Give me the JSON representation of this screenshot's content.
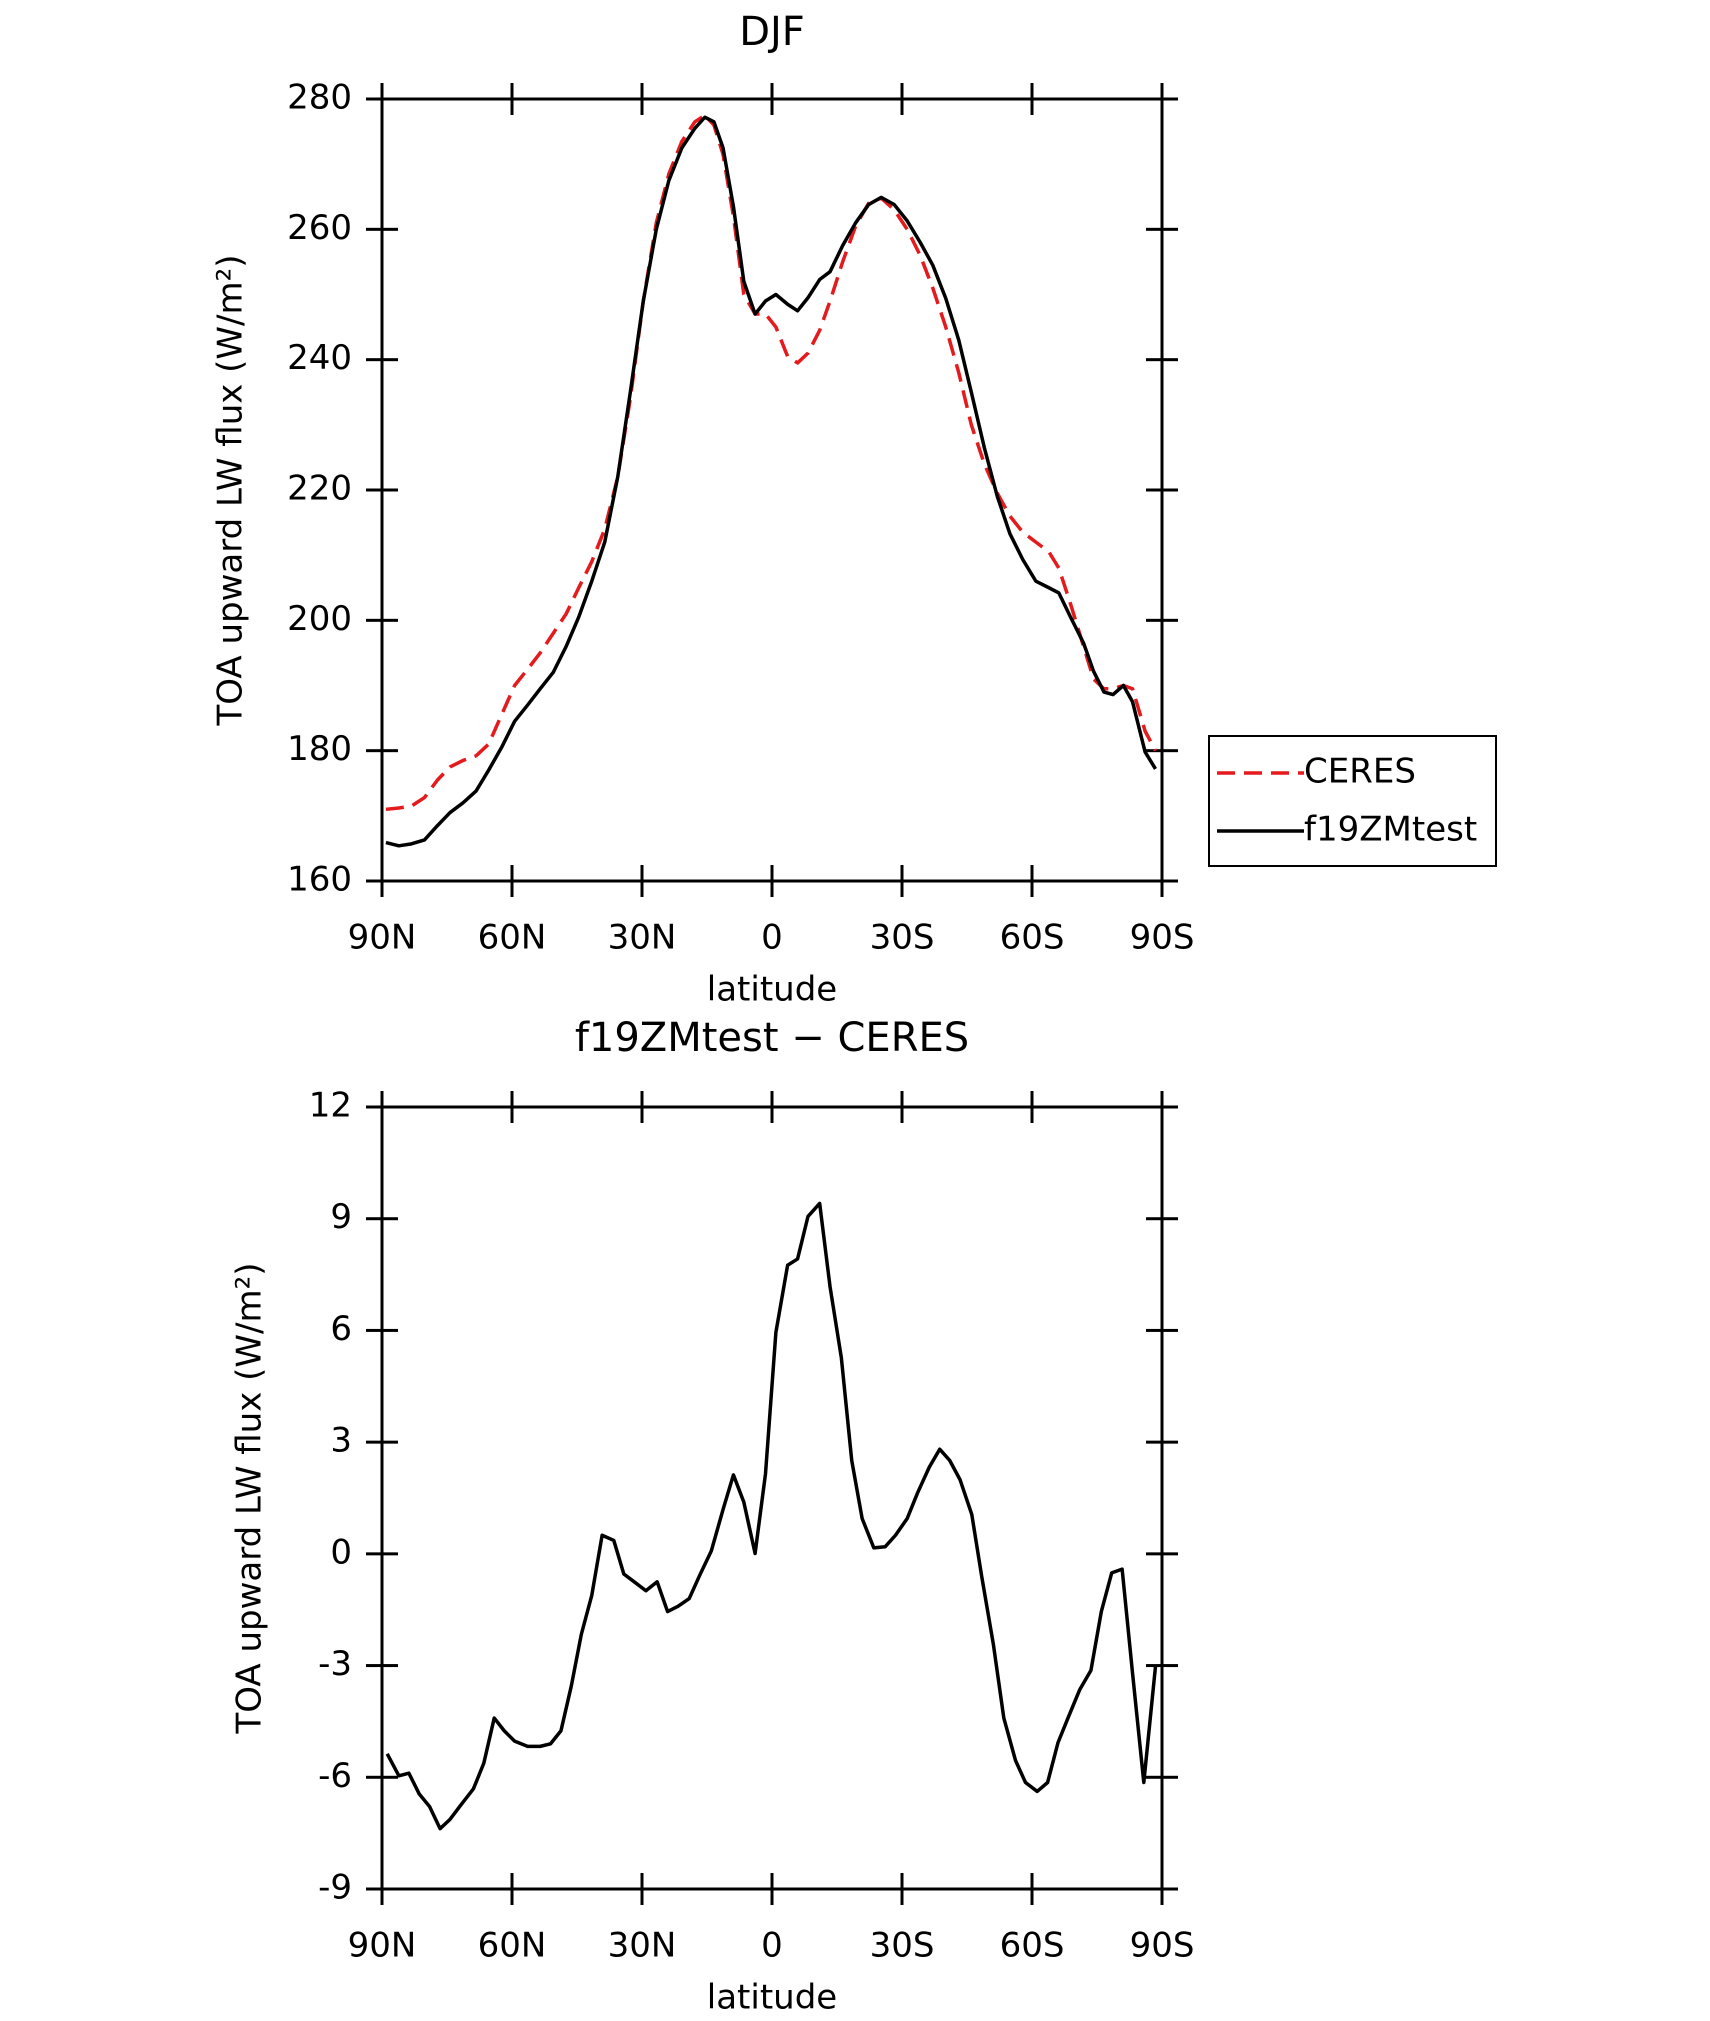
{
  "chart_data": [
    {
      "type": "line",
      "title": "DJF",
      "xlabel": "latitude",
      "ylabel": "TOA upward LW flux (W/m²)",
      "x": [
        89.1,
        86.1,
        83.2,
        80.2,
        77.2,
        74.3,
        71.3,
        68.3,
        65.4,
        62.4,
        59.4,
        56.4,
        53.5,
        50.5,
        47.5,
        44.6,
        41.6,
        38.6,
        35.6,
        32.7,
        29.7,
        26.7,
        23.8,
        20.8,
        17.8,
        15.5,
        13.4,
        11.3,
        8.9,
        6.5,
        3.9,
        1.5,
        -0.9,
        -3.6,
        -5.9,
        -8.3,
        -11.0,
        -13.4,
        -16.3,
        -19.3,
        -22.3,
        -25.2,
        -28.2,
        -31.2,
        -34.2,
        -37.1,
        -40.1,
        -43.1,
        -46.0,
        -49.0,
        -52.0,
        -54.9,
        -57.9,
        -60.9,
        -63.9,
        -66.2,
        -68.9,
        -71.9,
        -74.2,
        -76.6,
        -78.7,
        -81.1,
        -83.2,
        -86.1,
        -88.5
      ],
      "series": [
        {
          "name": "CERES",
          "color": "#e41a1c",
          "line_style": "dashed",
          "values": [
            171,
            171.2,
            171.5,
            172.8,
            175.5,
            177.5,
            178.5,
            179.2,
            181,
            185.5,
            190,
            192.5,
            195,
            198,
            201,
            205,
            209,
            214,
            222,
            234,
            249,
            261,
            268.5,
            273.5,
            276.5,
            277.5,
            276,
            271.5,
            262,
            250,
            247,
            247,
            245,
            240.5,
            239.5,
            241,
            244.5,
            249,
            255,
            260.5,
            264,
            264.8,
            263,
            260,
            256,
            251,
            245,
            238,
            230,
            224,
            219.5,
            216,
            213.5,
            212,
            210.5,
            208,
            202.5,
            196,
            191,
            189.5,
            189.5,
            190,
            189.5,
            183,
            180
          ]
        },
        {
          "name": "f19ZMtest",
          "color": "#000000",
          "line_style": "solid",
          "values": [
            165.9,
            165.4,
            165.7,
            166.3,
            168.5,
            170.5,
            172,
            173.8,
            177,
            180.5,
            184.5,
            187,
            189.5,
            192,
            196,
            200.5,
            206,
            212,
            222,
            235,
            249,
            260,
            267.5,
            272.5,
            275.5,
            277.2,
            276.5,
            272.5,
            263.5,
            252,
            247,
            249,
            250,
            248.5,
            247.5,
            249.5,
            252.3,
            253.5,
            257.5,
            261,
            263.8,
            264.9,
            263.8,
            261.3,
            258,
            254.5,
            249.4,
            243,
            235,
            226.5,
            219,
            213.3,
            209.3,
            206,
            205,
            204.2,
            200.5,
            196.5,
            192.2,
            189,
            188.6,
            190,
            187.5,
            179.8,
            177.2
          ]
        }
      ],
      "xlim": [
        90,
        -90
      ],
      "xticks": [
        {
          "value": 90,
          "label": "90N"
        },
        {
          "value": 60,
          "label": "60N"
        },
        {
          "value": 30,
          "label": "30N"
        },
        0,
        {
          "value": -30,
          "label": "30S"
        },
        {
          "value": -60,
          "label": "60S"
        },
        {
          "value": -90,
          "label": "90S"
        }
      ],
      "ylim": [
        160,
        280
      ],
      "yticks": [
        160,
        180,
        200,
        220,
        240,
        260,
        280
      ],
      "grid": false,
      "legend": "right"
    },
    {
      "type": "line",
      "title": "f19ZMtest − CERES",
      "xlabel": "latitude",
      "ylabel": "TOA upward LW flux (W/m²)",
      "x": [
        88.8,
        86.1,
        83.8,
        81.4,
        79.0,
        76.6,
        74.3,
        71.9,
        68.9,
        66.5,
        64.1,
        61.8,
        59.4,
        56.4,
        53.5,
        51.1,
        48.7,
        46.3,
        44.0,
        41.6,
        39.2,
        36.5,
        34.2,
        31.8,
        29.1,
        26.5,
        24.1,
        21.7,
        19.1,
        16.7,
        14.0,
        11.3,
        8.9,
        6.5,
        3.9,
        1.5,
        -0.9,
        -3.6,
        -5.9,
        -8.3,
        -11.0,
        -13.4,
        -16.0,
        -18.4,
        -20.8,
        -23.5,
        -26.1,
        -28.5,
        -31.2,
        -33.6,
        -36.3,
        -38.7,
        -41.0,
        -43.4,
        -46.1,
        -48.4,
        -51.1,
        -53.5,
        -56.2,
        -58.5,
        -61.2,
        -63.6,
        -66.0,
        -68.3,
        -71.0,
        -73.6,
        -76.0,
        -78.4,
        -80.8,
        -83.2,
        -85.8,
        -88.5
      ],
      "series": [
        {
          "name": "f19ZMtest − CERES",
          "color": "#000000",
          "line_style": "solid",
          "values": [
            -5.37,
            -5.96,
            -5.89,
            -6.45,
            -6.79,
            -7.38,
            -7.13,
            -6.76,
            -6.31,
            -5.62,
            -4.41,
            -4.75,
            -5.03,
            -5.17,
            -5.17,
            -5.1,
            -4.75,
            -3.54,
            -2.16,
            -1.12,
            0.5,
            0.36,
            -0.54,
            -0.75,
            -0.99,
            -0.75,
            -1.55,
            -1.41,
            -1.2,
            -0.58,
            0.08,
            1.19,
            2.12,
            1.39,
            0.01,
            2.15,
            5.95,
            7.75,
            7.92,
            9.06,
            9.41,
            7.17,
            5.27,
            2.51,
            0.95,
            0.16,
            0.19,
            0.5,
            0.95,
            1.64,
            2.33,
            2.81,
            2.51,
            1.99,
            1.06,
            -0.61,
            -2.44,
            -4.41,
            -5.55,
            -6.14,
            -6.38,
            -6.14,
            -5.07,
            -4.41,
            -3.65,
            -3.13,
            -1.55,
            -0.51,
            -0.41,
            -3.2,
            -6.14,
            -3.02
          ]
        }
      ],
      "xlim": [
        90,
        -90
      ],
      "xticks": [
        {
          "value": 90,
          "label": "90N"
        },
        {
          "value": 60,
          "label": "60N"
        },
        {
          "value": 30,
          "label": "30N"
        },
        0,
        {
          "value": -30,
          "label": "30S"
        },
        {
          "value": -60,
          "label": "60S"
        },
        {
          "value": -90,
          "label": "90S"
        }
      ],
      "ylim": [
        -9,
        12
      ],
      "yticks": [
        -9,
        -6,
        -3,
        0,
        3,
        6,
        9,
        12
      ],
      "grid": false
    }
  ]
}
